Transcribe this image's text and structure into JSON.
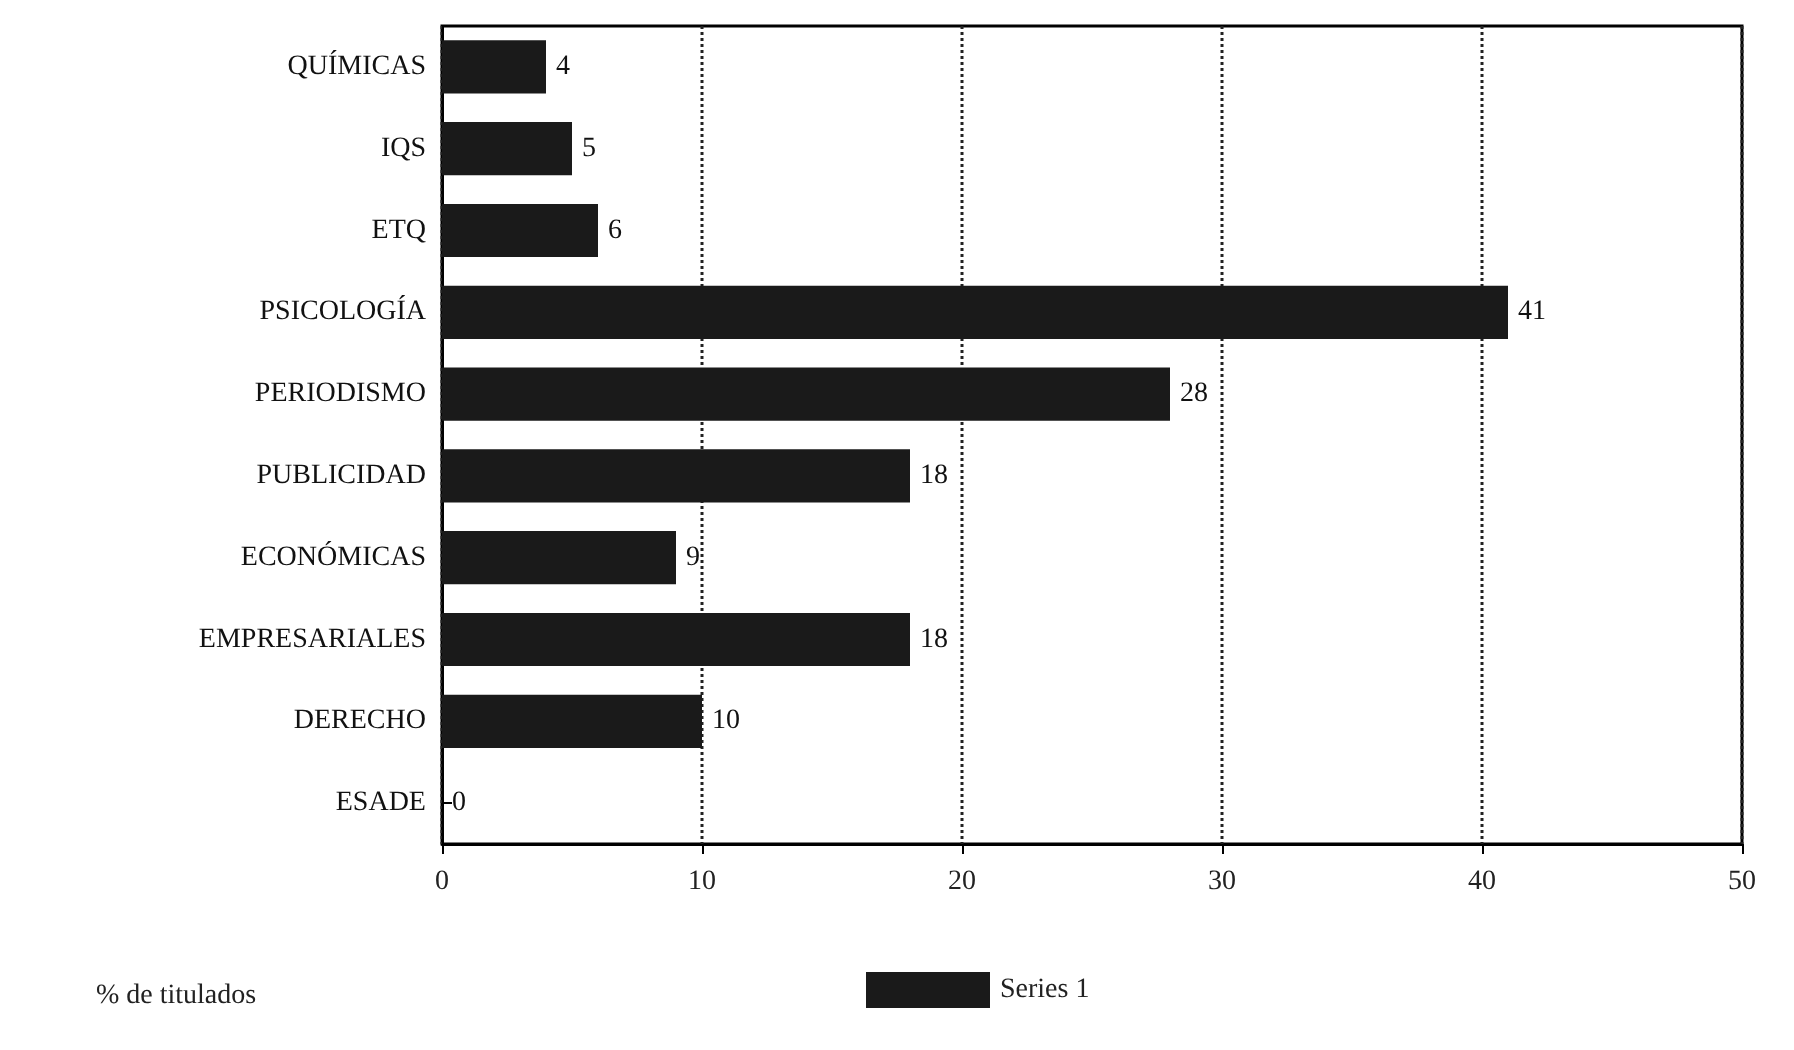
{
  "chart_data": {
    "type": "bar",
    "orientation": "horizontal",
    "xlabel": "% de titulados",
    "categories": [
      "QUÍMICAS",
      "IQS",
      "ETQ",
      "PSICOLOGÍA",
      "PERIODISMO",
      "PUBLICIDAD",
      "ECONÓMICAS",
      "EMPRESARIALES",
      "DERECHO",
      "ESADE"
    ],
    "series": [
      {
        "name": "Series 1",
        "color": "#1a1a1a",
        "values": [
          4,
          5,
          6,
          41,
          28,
          18,
          9,
          18,
          10,
          0
        ]
      }
    ],
    "xlim": [
      0,
      50
    ],
    "xticks": [
      0,
      10,
      20,
      30,
      40,
      50
    ],
    "grid": "x",
    "data_labels": true,
    "legend": "bottom"
  }
}
